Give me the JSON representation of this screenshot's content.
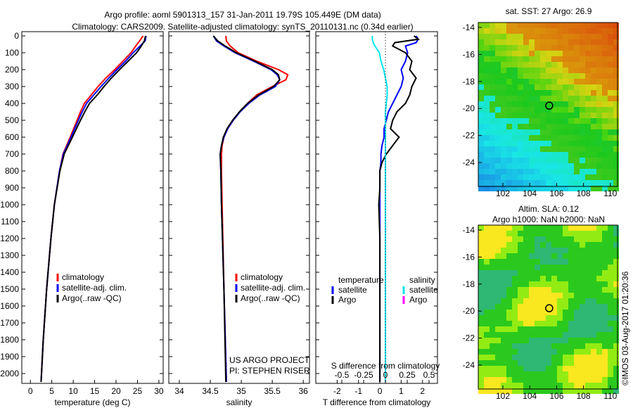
{
  "title_line1": "Argo profile: aoml 5901313_157 31-Jan-2011 19.79S 105.449E (DM data)",
  "title_line2": "Climatology: CARS2009. Satellite-adjusted climatology: synTS_20110131.nc (0.34d earlier)",
  "colors": {
    "climatology": "#ff0000",
    "satellite": "#0000ff",
    "argo": "#000000",
    "sal_satellite": "#00e5ee",
    "sal_argo": "#ff00ff"
  },
  "credits": {
    "project": "US ARGO PROJECT",
    "pi": "PI: STEPHEN RISER",
    "stamp": "©IMOS 03-Aug-2017 01:20:36"
  },
  "map_sst": {
    "title": "sat. SST: 27 Argo: 26.9",
    "xticks": [
      "102",
      "104",
      "106",
      "108",
      "110"
    ],
    "yticks": [
      "-14",
      "-16",
      "-18",
      "-20",
      "-22",
      "-24"
    ],
    "argo_lon": 105.449,
    "argo_lat": -19.79
  },
  "map_sla": {
    "title1": "Altim. SLA: 0.12",
    "title2": "Argo h1000: NaN h2000: NaN",
    "xticks": [
      "102",
      "104",
      "106",
      "108",
      "110"
    ],
    "yticks": [
      "-14",
      "-16",
      "-18",
      "-20",
      "-22",
      "-24"
    ],
    "argo_lon": 105.449,
    "argo_lat": -19.79
  },
  "chart_data": [
    {
      "type": "line",
      "xlabel": "temperature (deg C)",
      "ylabel": "",
      "xlim": [
        -2,
        31
      ],
      "ylim": [
        2050,
        0
      ],
      "xticks": [
        "0",
        "5",
        "10",
        "15",
        "20",
        "25",
        "30"
      ],
      "yticks": [
        "0",
        "100",
        "200",
        "300",
        "400",
        "500",
        "600",
        "700",
        "800",
        "900",
        "1000",
        "1100",
        "1200",
        "1300",
        "1400",
        "1500",
        "1600",
        "1700",
        "1800",
        "1900",
        "2000"
      ],
      "legend": [
        "climatology",
        "satellite-adj. clim.",
        "Argo(..raw -QC)"
      ],
      "depth": [
        0,
        30,
        60,
        100,
        150,
        200,
        250,
        300,
        350,
        400,
        450,
        500,
        600,
        700,
        800,
        1000,
        1200,
        1500,
        1800,
        2050
      ],
      "series": [
        {
          "name": "climatology",
          "values": [
            26.3,
            25.5,
            24.6,
            23.5,
            21.6,
            19.7,
            17.6,
            15.8,
            14.2,
            12.6,
            11.7,
            10.9,
            9.3,
            7.6,
            6.8,
            5.6,
            4.8,
            3.8,
            3.0,
            2.5
          ]
        },
        {
          "name": "satellite-adj. clim.",
          "values": [
            27.0,
            26.8,
            25.6,
            24.0,
            22.2,
            20.2,
            18.3,
            16.5,
            14.8,
            13.1,
            12.1,
            11.2,
            9.5,
            7.7,
            6.8,
            5.6,
            4.8,
            3.8,
            3.0,
            2.5
          ]
        },
        {
          "name": "Argo(..raw -QC)",
          "values": [
            26.9,
            26.6,
            25.9,
            24.8,
            22.8,
            20.8,
            18.9,
            17.2,
            15.6,
            13.8,
            12.7,
            11.7,
            9.8,
            7.9,
            6.9,
            5.6,
            4.8,
            3.8,
            3.0,
            2.5
          ]
        }
      ]
    },
    {
      "type": "line",
      "xlabel": "salinity",
      "xlim": [
        33.83,
        36.1
      ],
      "ylim": [
        2050,
        0
      ],
      "xticks": [
        "34",
        "34.5",
        "35",
        "35.5",
        "36"
      ],
      "legend": [
        "climatology",
        "satellite-adj. clim.",
        "Argo(..raw -QC)"
      ],
      "depth": [
        0,
        30,
        60,
        100,
        150,
        200,
        230,
        260,
        300,
        350,
        400,
        450,
        500,
        550,
        600,
        650,
        700,
        800,
        1000,
        1500,
        2050
      ],
      "series": [
        {
          "name": "climatology",
          "values": [
            34.75,
            34.76,
            34.82,
            34.95,
            35.25,
            35.6,
            35.75,
            35.72,
            35.5,
            35.25,
            35.1,
            34.97,
            34.87,
            34.78,
            34.72,
            34.69,
            34.68,
            34.68,
            34.69,
            34.72,
            34.76
          ]
        },
        {
          "name": "satellite-adj. clim.",
          "values": [
            34.55,
            34.6,
            34.72,
            34.9,
            35.2,
            35.48,
            35.58,
            35.62,
            35.55,
            35.3,
            35.12,
            34.98,
            34.87,
            34.78,
            34.72,
            34.68,
            34.66,
            34.67,
            34.68,
            34.72,
            34.76
          ]
        },
        {
          "name": "Argo(..raw -QC)",
          "values": [
            34.55,
            34.62,
            34.74,
            34.92,
            35.22,
            35.5,
            35.6,
            35.62,
            35.52,
            35.28,
            35.1,
            34.97,
            34.86,
            34.77,
            34.71,
            34.68,
            34.66,
            34.67,
            34.68,
            34.72,
            34.75
          ]
        }
      ]
    },
    {
      "type": "line",
      "xlabel": "T difference from climatology",
      "x2label": "S difference from climatology",
      "xlim": [
        -3,
        2.7
      ],
      "ylim": [
        2050,
        0
      ],
      "xticks": [
        "-2",
        "-1",
        "0",
        "1",
        "2"
      ],
      "x2ticks": [
        "-0.5",
        "-0.25",
        "0",
        "0.25",
        "0.5"
      ],
      "legend_temperature": {
        "title": "temperature",
        "items": [
          "satellite",
          "Argo"
        ]
      },
      "legend_salinity": {
        "title": "salinity",
        "items": [
          "satellite",
          "Argo"
        ]
      },
      "depth": [
        0,
        20,
        40,
        60,
        100,
        150,
        200,
        250,
        300,
        350,
        400,
        450,
        500,
        550,
        600,
        650,
        700,
        750,
        800,
        900,
        1000,
        1200,
        1500,
        2050
      ],
      "series": [
        {
          "name": "T satellite",
          "values": [
            1.7,
            1.8,
            1.7,
            1.2,
            1.3,
            1.2,
            1.0,
            1.1,
            1.0,
            0.8,
            0.6,
            0.4,
            0.3,
            0.2,
            0.2,
            0.1,
            0.05,
            0.05,
            0.0,
            0.0,
            0.0,
            0.0,
            0.0,
            0.0
          ]
        },
        {
          "name": "T Argo",
          "values": [
            1.6,
            1.8,
            0.7,
            0.6,
            1.2,
            1.5,
            1.4,
            1.7,
            1.5,
            1.4,
            1.2,
            0.8,
            0.6,
            0.5,
            0.9,
            0.6,
            0.3,
            0.1,
            0.0,
            0.0,
            -0.05,
            0.0,
            0.0,
            0.0
          ]
        },
        {
          "name": "S satellite",
          "values": [
            -0.15,
            -0.15,
            -0.14,
            -0.12,
            -0.07,
            -0.05,
            -0.02,
            0.0,
            0.02,
            0.02,
            0.01,
            0.0,
            0.0,
            0.0,
            0.0,
            0.0,
            0.0,
            0.0,
            0.0,
            0.0,
            0.0,
            0.0,
            0.0,
            0.0
          ]
        }
      ]
    }
  ]
}
